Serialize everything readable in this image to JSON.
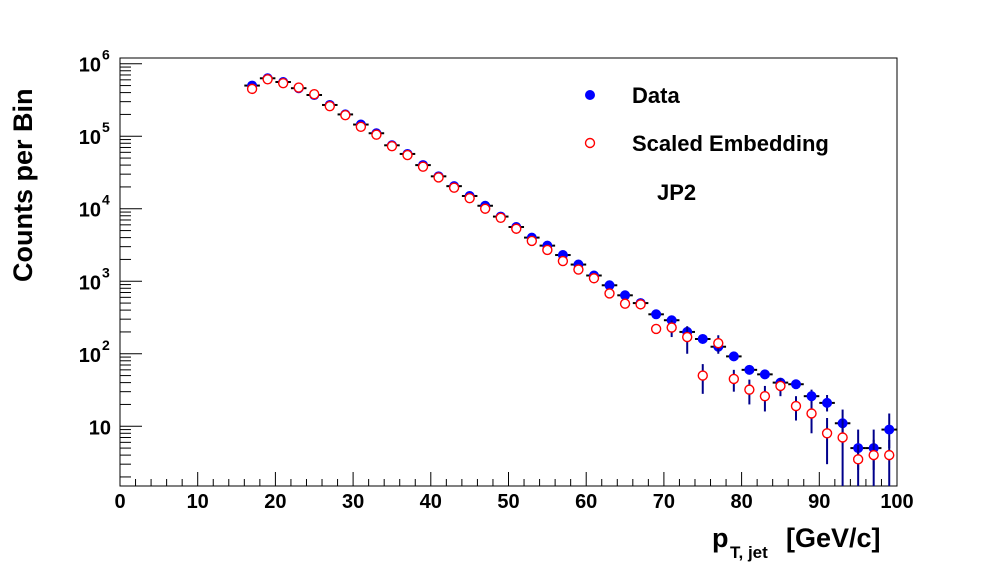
{
  "chart_data": {
    "type": "scatter",
    "title": "",
    "xlabel": "p",
    "xlabel_sub": "T, jet",
    "xlabel_unit": "[GeV/c]",
    "ylabel": "Counts per Bin",
    "xlim": [
      0,
      100
    ],
    "ylim": [
      1.5,
      1200000
    ],
    "yscale": "log",
    "grid": false,
    "legend_position": "top-right",
    "annotation": "JP2",
    "x_ticks": [
      0,
      10,
      20,
      30,
      40,
      50,
      60,
      70,
      80,
      90,
      100
    ],
    "y_ticks": [
      {
        "value": 10,
        "base": "10",
        "exp": ""
      },
      {
        "value": 100,
        "base": "10",
        "exp": "2"
      },
      {
        "value": 1000,
        "base": "10",
        "exp": "3"
      },
      {
        "value": 10000,
        "base": "10",
        "exp": "4"
      },
      {
        "value": 100000,
        "base": "10",
        "exp": "5"
      },
      {
        "value": 1000000,
        "base": "10",
        "exp": "6"
      }
    ],
    "x_bin_half_width": 1,
    "series": [
      {
        "name": "Data",
        "marker": "filled-circle",
        "color": "#0000ff",
        "x": [
          17,
          19,
          21,
          23,
          25,
          27,
          29,
          31,
          33,
          35,
          37,
          39,
          41,
          43,
          45,
          47,
          49,
          51,
          53,
          55,
          57,
          59,
          61,
          63,
          65,
          67,
          69,
          71,
          73,
          75,
          77,
          79,
          81,
          83,
          85,
          87,
          89,
          91,
          93,
          95,
          97,
          99
        ],
        "y": [
          500000,
          630000,
          560000,
          460000,
          370000,
          270000,
          200000,
          145000,
          110000,
          75000,
          57000,
          40000,
          28000,
          20500,
          15000,
          11000,
          7800,
          5600,
          4000,
          3100,
          2300,
          1700,
          1200,
          880,
          640,
          500,
          350,
          290,
          200,
          160,
          125,
          92,
          60,
          52,
          40,
          38,
          26,
          21,
          11,
          5,
          5,
          9
        ],
        "y_err_low": [
          0,
          0,
          0,
          0,
          0,
          0,
          0,
          0,
          0,
          0,
          0,
          0,
          0,
          0,
          0,
          0,
          0,
          0,
          0,
          0,
          0,
          0,
          0,
          0,
          0,
          0,
          0,
          0,
          0,
          0,
          0,
          8,
          6,
          5,
          4,
          4,
          5,
          5,
          4,
          2.5,
          2.5,
          4
        ],
        "y_err_high": [
          0,
          0,
          0,
          0,
          0,
          0,
          0,
          0,
          0,
          0,
          0,
          0,
          0,
          0,
          0,
          0,
          0,
          0,
          0,
          0,
          0,
          0,
          0,
          0,
          0,
          0,
          0,
          0,
          0,
          0,
          0,
          8,
          6,
          5,
          4,
          4,
          6,
          6,
          6,
          4,
          4,
          6
        ]
      },
      {
        "name": "Scaled Embedding",
        "marker": "open-circle",
        "color": "#ff0000",
        "x": [
          17,
          19,
          21,
          23,
          25,
          27,
          29,
          31,
          33,
          35,
          37,
          39,
          41,
          43,
          45,
          47,
          49,
          51,
          53,
          55,
          57,
          59,
          61,
          63,
          65,
          67,
          69,
          71,
          73,
          75,
          77,
          79,
          81,
          83,
          85,
          87,
          89,
          91,
          93,
          95,
          97,
          99
        ],
        "y": [
          450000,
          610000,
          540000,
          470000,
          380000,
          260000,
          195000,
          135000,
          105000,
          73000,
          55000,
          38000,
          27000,
          19500,
          14000,
          10000,
          7500,
          5300,
          3600,
          2700,
          1900,
          1450,
          1100,
          680,
          490,
          480,
          220,
          230,
          170,
          50,
          140,
          45,
          32,
          26,
          36,
          19,
          15,
          8,
          7,
          3.5,
          4,
          4
        ],
        "y_err_low": [
          0,
          0,
          0,
          0,
          0,
          0,
          0,
          0,
          0,
          0,
          0,
          0,
          0,
          0,
          0,
          0,
          0,
          0,
          0,
          0,
          0,
          0,
          0,
          0,
          0,
          0,
          0,
          60,
          70,
          22,
          40,
          15,
          12,
          10,
          10,
          7,
          7,
          5,
          5.5,
          2,
          2.5,
          2.5
        ],
        "y_err_high": [
          0,
          0,
          0,
          0,
          0,
          0,
          0,
          0,
          0,
          0,
          0,
          0,
          0,
          0,
          0,
          0,
          0,
          0,
          0,
          0,
          0,
          0,
          0,
          0,
          0,
          0,
          0,
          60,
          70,
          22,
          40,
          15,
          12,
          10,
          10,
          7,
          7,
          5,
          5.5,
          2,
          2.5,
          2.5
        ]
      }
    ]
  }
}
